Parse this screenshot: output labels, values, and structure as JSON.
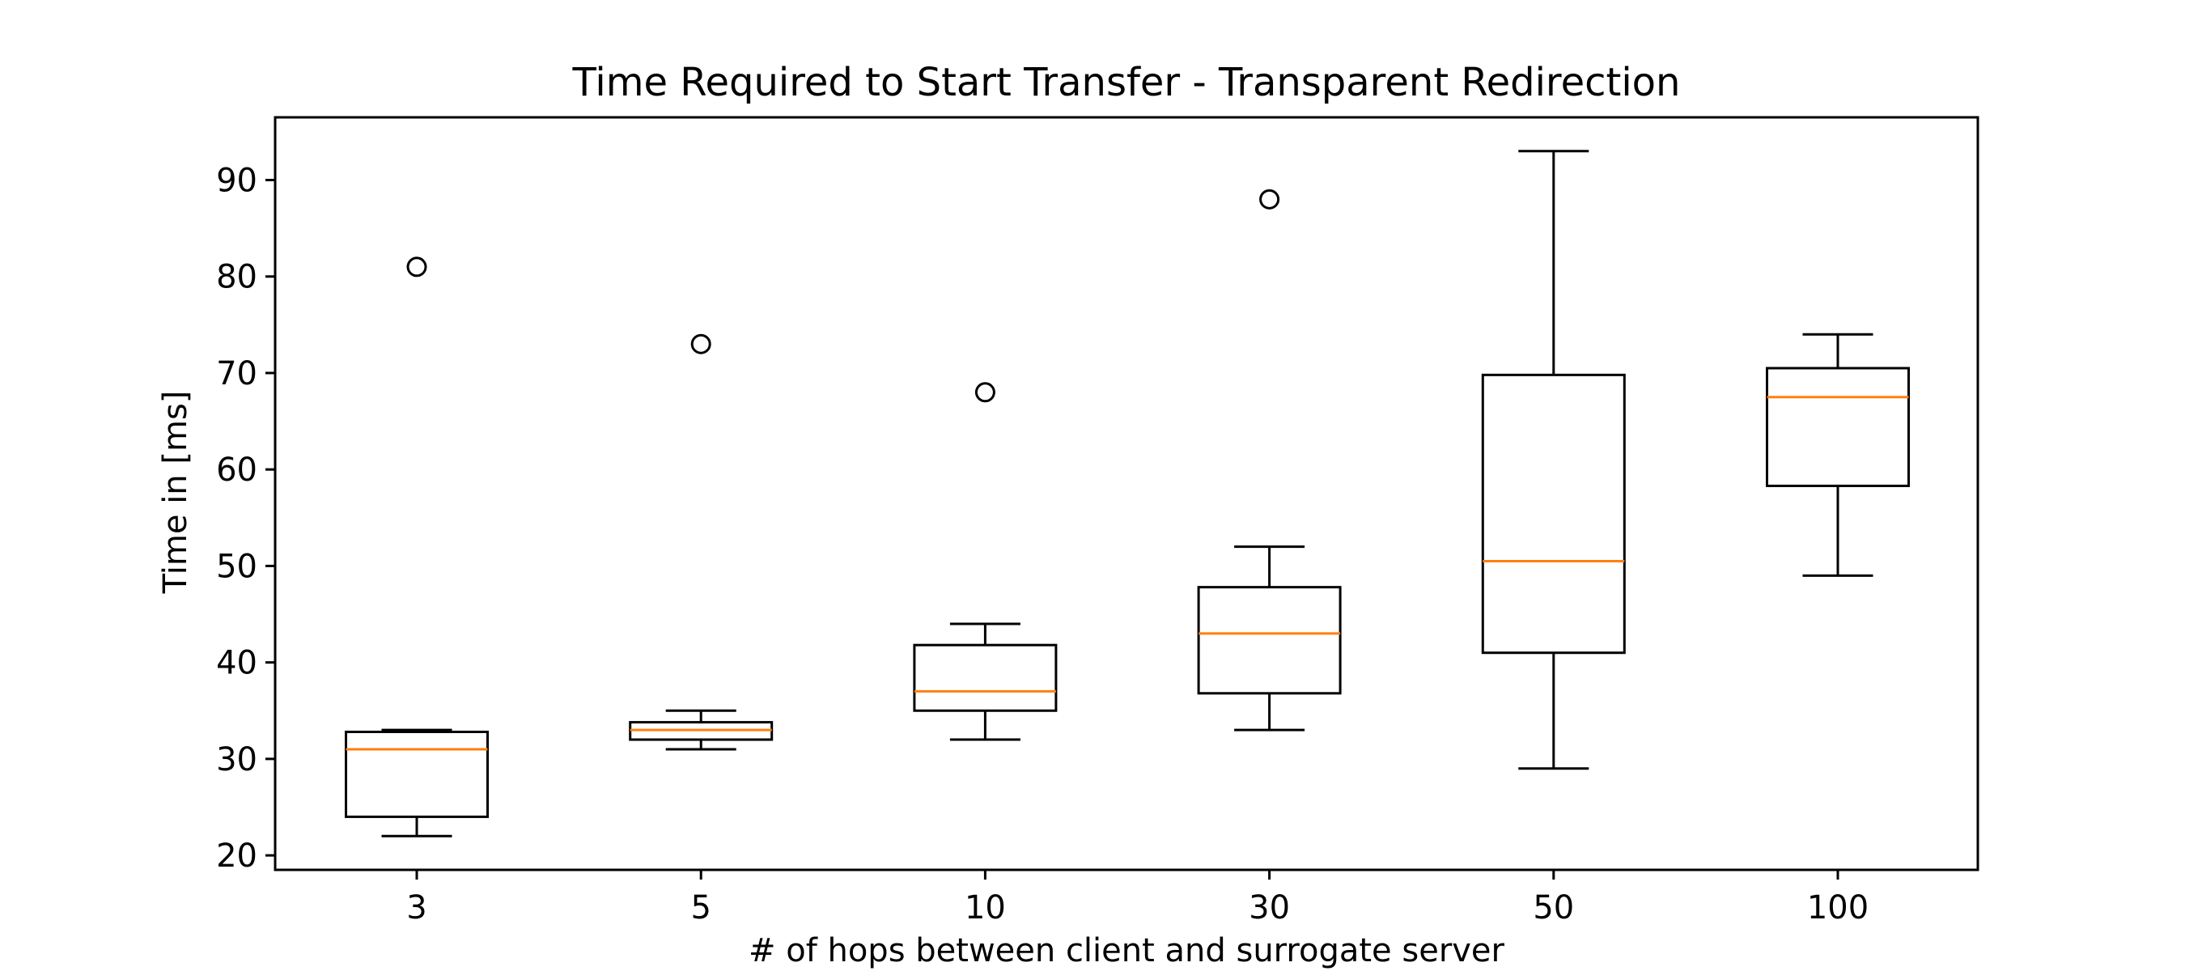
{
  "chart_data": {
    "type": "box",
    "title": "Time Required to Start Transfer - Transparent Redirection",
    "xlabel": "# of hops between client and surrogate server",
    "ylabel": "Time in [ms]",
    "ylim": [
      18.5,
      96.5
    ],
    "yticks": [
      20,
      30,
      40,
      50,
      60,
      70,
      80,
      90
    ],
    "ytick_labels": [
      "20",
      "30",
      "40",
      "50",
      "60",
      "70",
      "80",
      "90"
    ],
    "categories": [
      "3",
      "5",
      "10",
      "30",
      "50",
      "100"
    ],
    "boxes": [
      {
        "category": "3",
        "whisker_low": 22,
        "q1": 24,
        "median": 31,
        "q3": 32.8,
        "whisker_high": 33,
        "outliers": [
          81
        ]
      },
      {
        "category": "5",
        "whisker_low": 31,
        "q1": 32,
        "median": 33,
        "q3": 33.8,
        "whisker_high": 35,
        "outliers": [
          73
        ]
      },
      {
        "category": "10",
        "whisker_low": 32,
        "q1": 35,
        "median": 37,
        "q3": 41.8,
        "whisker_high": 44,
        "outliers": [
          68
        ]
      },
      {
        "category": "30",
        "whisker_low": 33,
        "q1": 36.8,
        "median": 43,
        "q3": 47.8,
        "whisker_high": 52,
        "outliers": [
          88
        ]
      },
      {
        "category": "50",
        "whisker_low": 29,
        "q1": 41,
        "median": 50.5,
        "q3": 69.8,
        "whisker_high": 93,
        "outliers": []
      },
      {
        "category": "100",
        "whisker_low": 49,
        "q1": 58.3,
        "median": 67.5,
        "q3": 70.5,
        "whisker_high": 74,
        "outliers": []
      }
    ],
    "grid": false,
    "legend": "none",
    "colors": {
      "box": "#000000",
      "median": "#ff7f0e",
      "background": "#ffffff"
    }
  }
}
